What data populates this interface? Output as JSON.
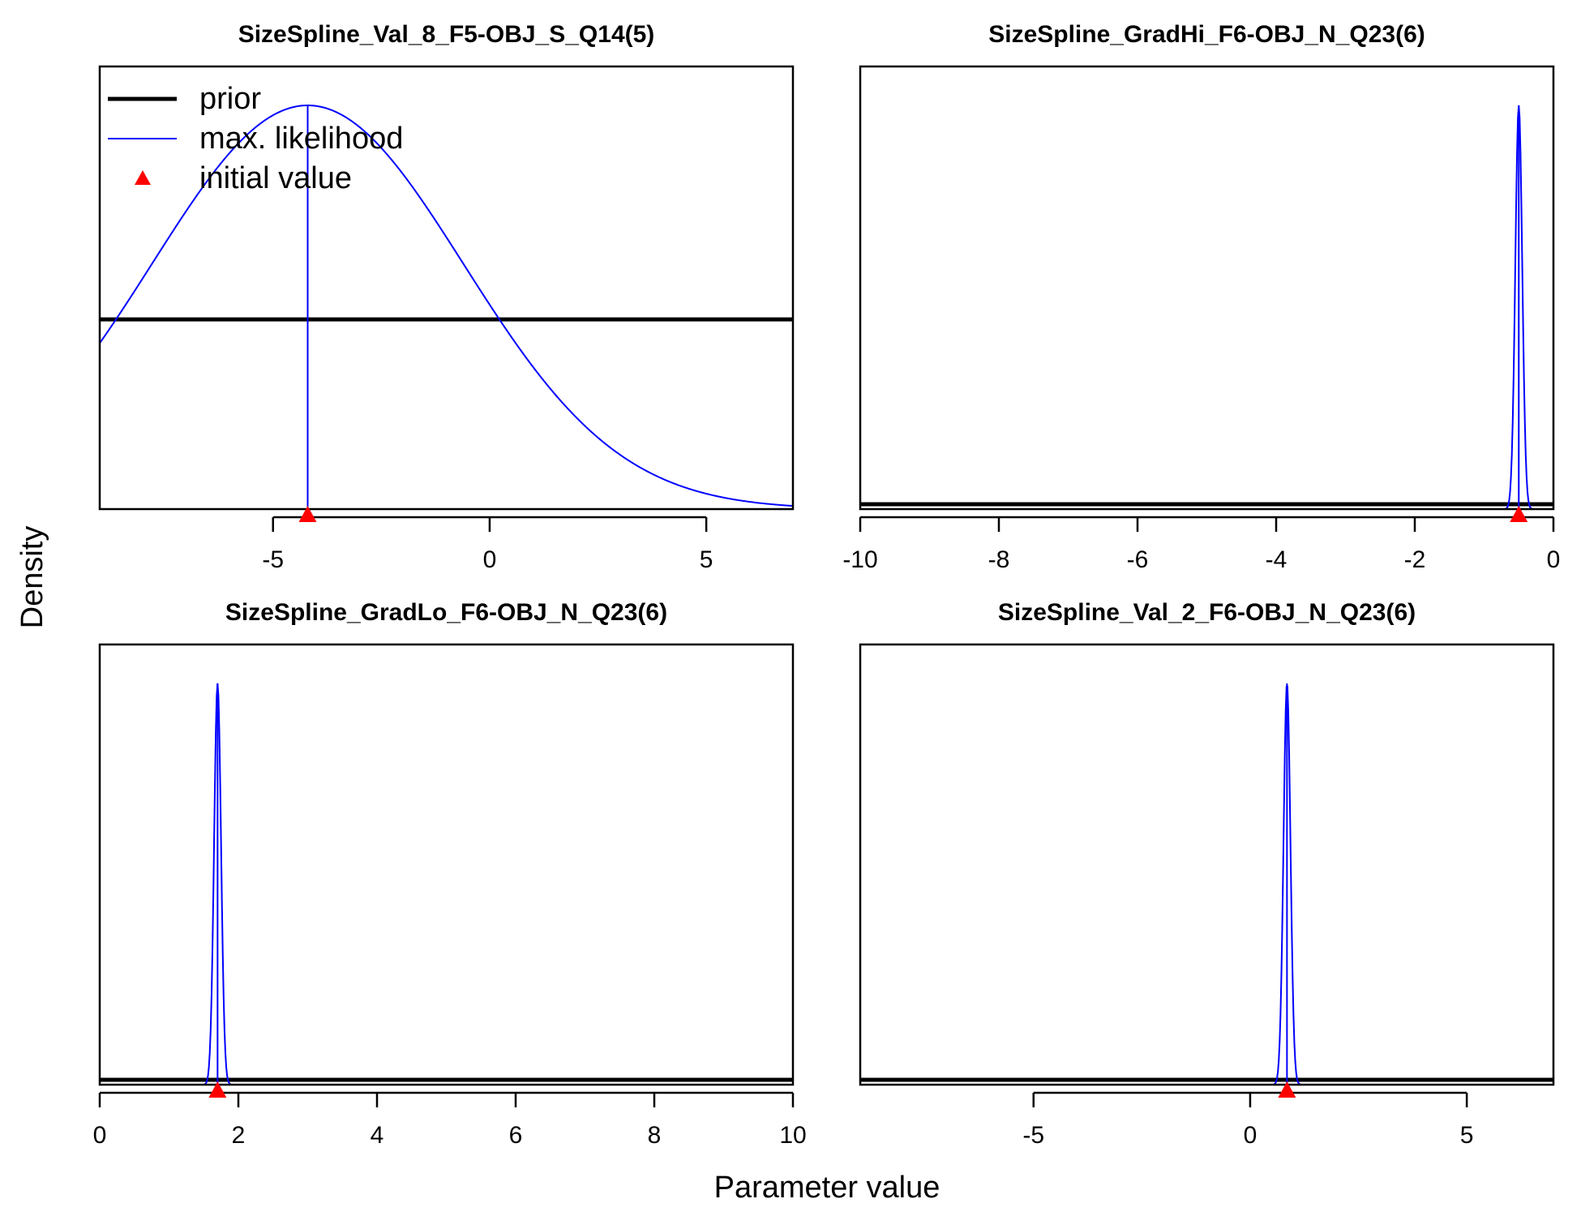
{
  "chart_data": {
    "type": "line",
    "ylabel": "Density",
    "xlabel": "Parameter value",
    "legend": {
      "placement": "top-left",
      "entries": [
        {
          "label": "prior",
          "style": "thick-black-line"
        },
        {
          "label": "max. likelihood",
          "style": "thin-blue-line"
        },
        {
          "label": "initial value",
          "style": "red-triangle"
        }
      ]
    },
    "colors": {
      "prior": "#000000",
      "likelihood": "#0000ff",
      "initial": "#ff0000"
    },
    "panels": [
      {
        "title": "SizeSpline_Val_8_F5-OBJ_S_Q14(5)",
        "xlim": [
          -9,
          7
        ],
        "xticks": [
          -5,
          0,
          5
        ],
        "xtick_labels": [
          "-5",
          "0",
          "5"
        ],
        "prior_level": 0.47,
        "likelihood": {
          "mean": -4.2,
          "sd": 3.6
        },
        "mle": -4.2,
        "initial": -4.2,
        "show_legend": true
      },
      {
        "title": "SizeSpline_GradHi_F6-OBJ_N_Q23(6)",
        "xlim": [
          -10,
          0
        ],
        "xticks": [
          -10,
          -8,
          -6,
          -4,
          -2,
          0
        ],
        "xtick_labels": [
          "-10",
          "-8",
          "-6",
          "-4",
          "-2",
          "0"
        ],
        "prior_level": 0.012,
        "likelihood": {
          "mean": -0.5,
          "sd": 0.05
        },
        "mle": -0.5,
        "initial": -0.5,
        "show_legend": false
      },
      {
        "title": "SizeSpline_GradLo_F6-OBJ_N_Q23(6)",
        "xlim": [
          0,
          10
        ],
        "xticks": [
          0,
          2,
          4,
          6,
          8,
          10
        ],
        "xtick_labels": [
          "0",
          "2",
          "4",
          "6",
          "8",
          "10"
        ],
        "prior_level": 0.012,
        "likelihood": {
          "mean": 1.7,
          "sd": 0.05
        },
        "mle": 1.7,
        "initial": 1.7,
        "show_legend": false
      },
      {
        "title": "SizeSpline_Val_2_F6-OBJ_N_Q23(6)",
        "xlim": [
          -9,
          7
        ],
        "xticks": [
          -5,
          0,
          5
        ],
        "xtick_labels": [
          "-5",
          "0",
          "5"
        ],
        "prior_level": 0.012,
        "likelihood": {
          "mean": 0.85,
          "sd": 0.08
        },
        "mle": 0.85,
        "initial": 0.85,
        "show_legend": false
      }
    ]
  }
}
